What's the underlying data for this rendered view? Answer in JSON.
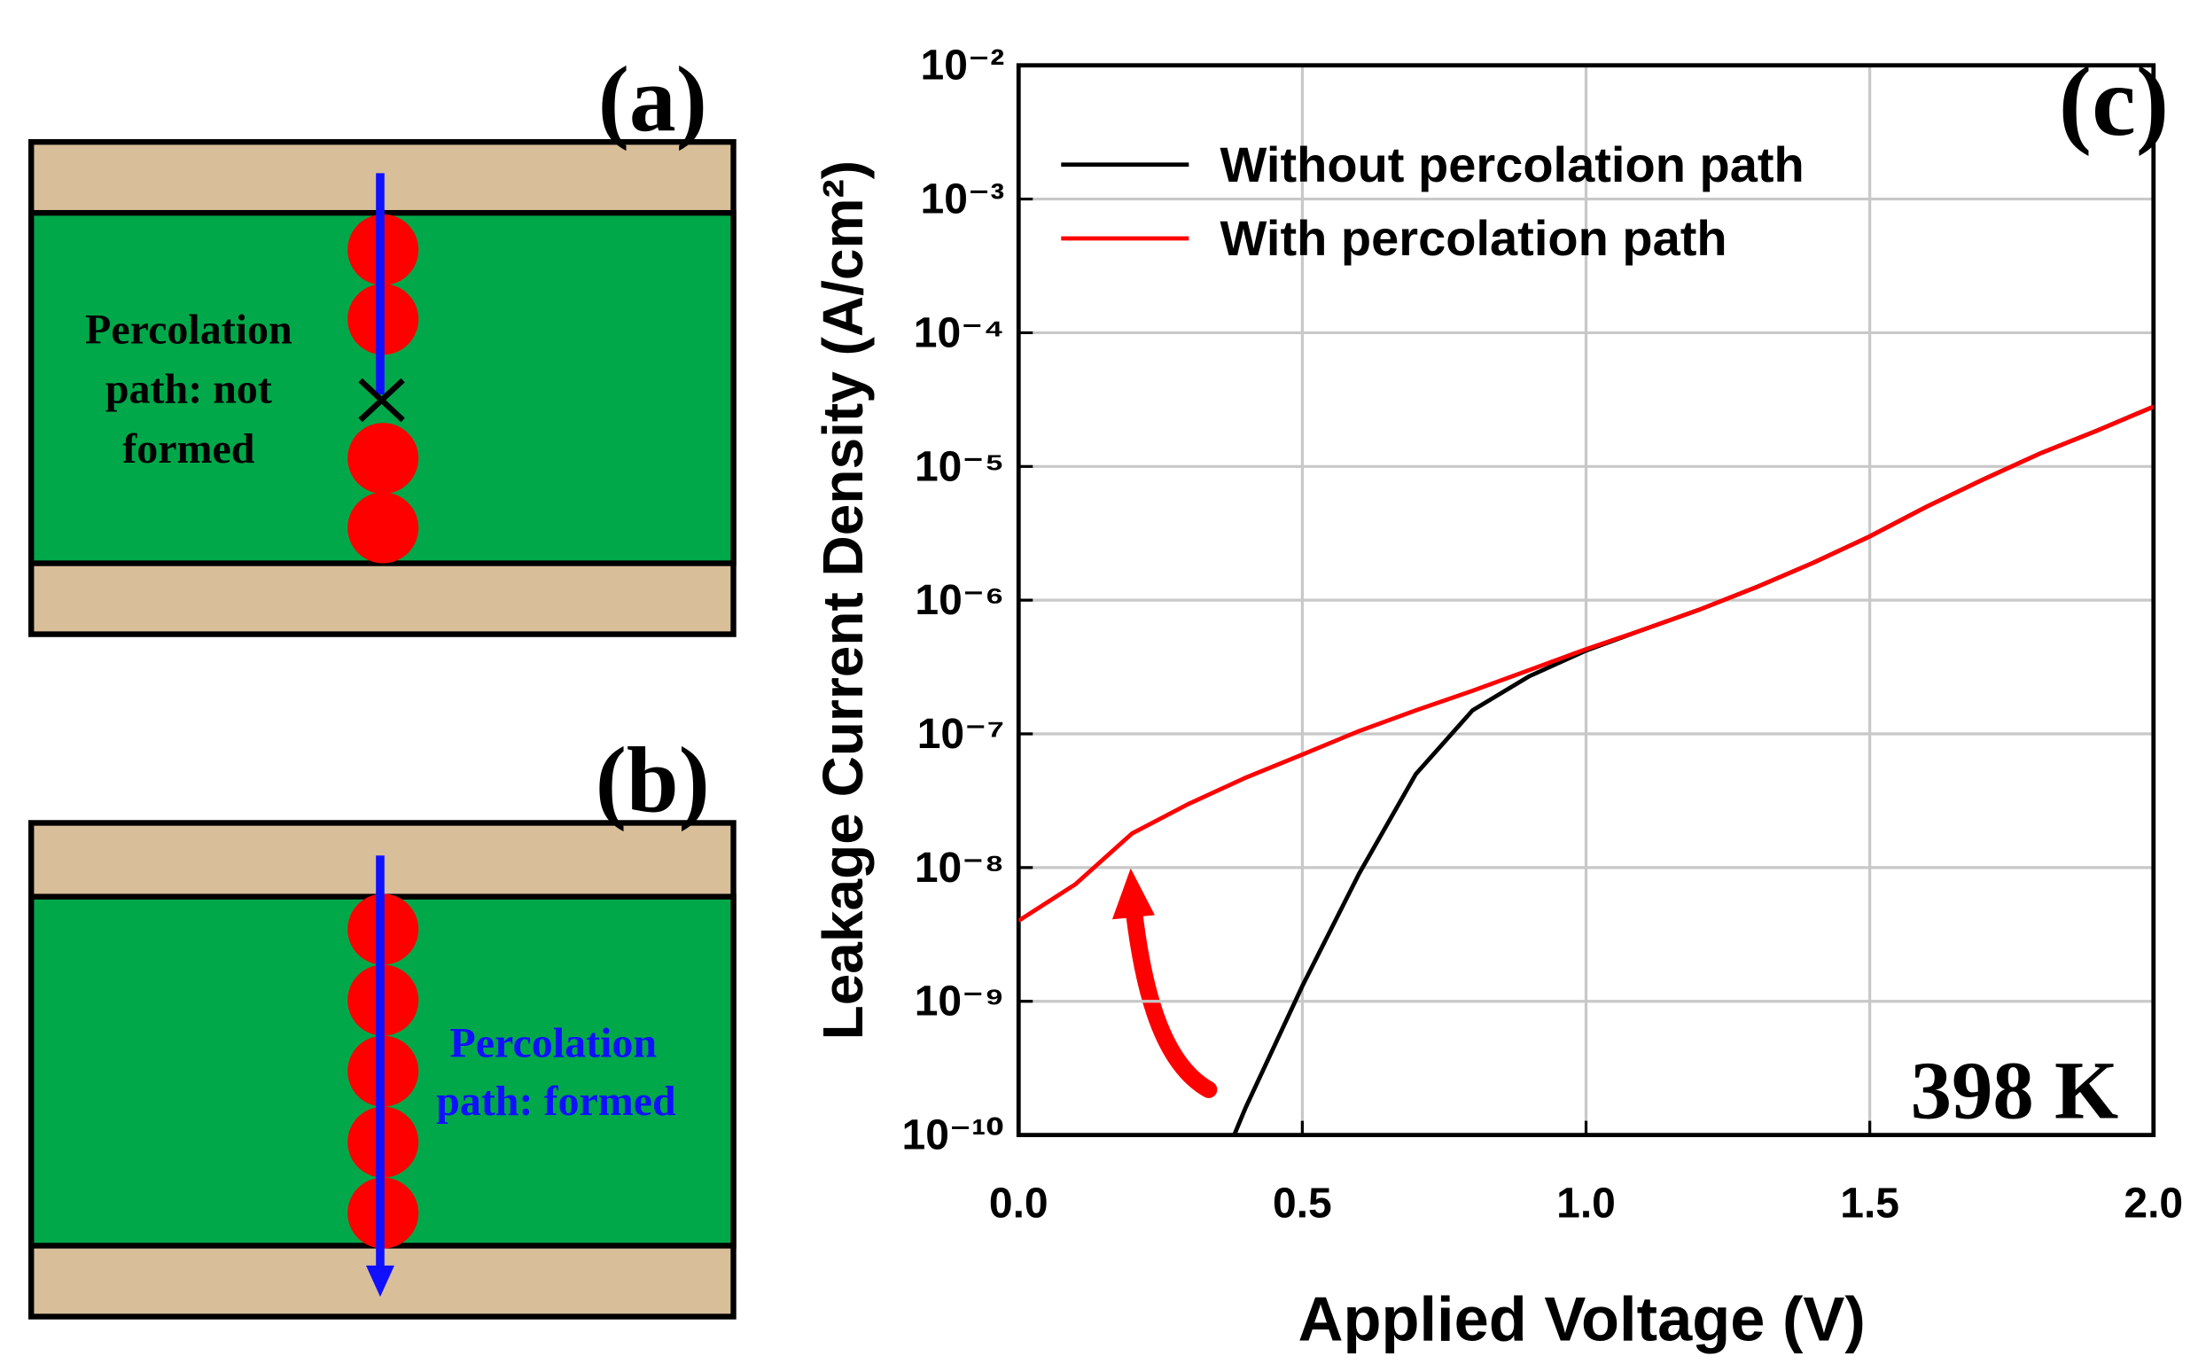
{
  "chart_data": {
    "type": "line",
    "title": "(c)",
    "xlabel": "Applied Voltage (V)",
    "ylabel": "Leakage Current Density (A/cm²)",
    "annotation": "398 K",
    "xlim": [
      0,
      2
    ],
    "xticks": [
      {
        "value": 0,
        "label": "0.0"
      },
      0.5,
      {
        "value": 1,
        "label": "1.0"
      },
      1.5,
      {
        "value": 2,
        "label": "2.0"
      }
    ],
    "ylim": [
      1e-10,
      0.01
    ],
    "yscale": "log",
    "yticks": [
      {
        "value": 1e-10,
        "label": "10⁻¹⁰"
      },
      {
        "value": 1e-09,
        "label": "10⁻⁹"
      },
      {
        "value": 1e-08,
        "label": "10⁻⁸"
      },
      {
        "value": 1e-07,
        "label": "10⁻⁷"
      },
      {
        "value": 1e-06,
        "label": "10⁻⁶"
      },
      {
        "value": 1e-05,
        "label": "10⁻⁵"
      },
      {
        "value": 0.0001,
        "label": "10⁻⁴"
      },
      {
        "value": 0.001,
        "label": "10⁻³"
      },
      {
        "value": 0.01,
        "label": "10⁻²"
      }
    ],
    "grid": true,
    "legend": "upper left",
    "series": [
      {
        "name": "Without percolation path",
        "color": "#000000",
        "x": [
          0.38,
          0.4,
          0.5,
          0.6,
          0.7,
          0.8,
          0.9,
          1.0,
          1.1,
          1.2,
          1.3,
          1.4,
          1.5,
          1.6,
          1.7,
          1.8,
          1.9,
          2.0
        ],
        "values": [
          1e-10,
          1.6e-10,
          1.3e-09,
          9e-09,
          5e-08,
          1.5e-07,
          2.7e-07,
          4.2e-07,
          6e-07,
          8.5e-07,
          1.25e-06,
          1.9e-06,
          3e-06,
          5e-06,
          8e-06,
          1.25e-05,
          1.85e-05,
          2.8e-05
        ]
      },
      {
        "name": "With percolation path",
        "color": "#ff0000",
        "x": [
          0,
          0.1,
          0.2,
          0.3,
          0.4,
          0.5,
          0.6,
          0.7,
          0.8,
          0.9,
          1.0,
          1.1,
          1.2,
          1.3,
          1.4,
          1.5,
          1.6,
          1.7,
          1.8,
          1.9,
          2.0
        ],
        "values": [
          4e-09,
          7.5e-09,
          1.8e-08,
          3e-08,
          4.7e-08,
          7e-08,
          1.05e-07,
          1.5e-07,
          2.1e-07,
          3e-07,
          4.3e-07,
          6e-07,
          8.5e-07,
          1.25e-06,
          1.9e-06,
          3e-06,
          5e-06,
          8e-06,
          1.25e-05,
          1.85e-05,
          2.8e-05
        ]
      }
    ]
  },
  "diagram": {
    "a": {
      "label": "(a)",
      "text": [
        "Percolation",
        "path: not",
        "formed"
      ]
    },
    "b": {
      "label": "(b)",
      "text": [
        "Percolation",
        "path: formed"
      ]
    }
  }
}
